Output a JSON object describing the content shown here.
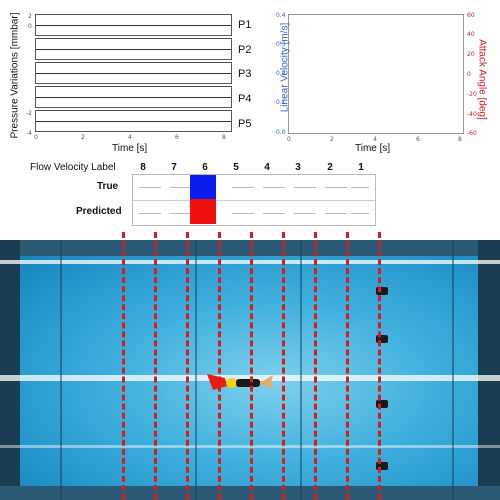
{
  "pressure_plot": {
    "ylabel": "Pressure Variations [mmbar]",
    "xlabel": "Time [s]",
    "channels": [
      "P1",
      "P2",
      "P3",
      "P4",
      "P5"
    ],
    "x_ticks": [
      "0",
      "2",
      "4",
      "6",
      "8"
    ],
    "y_ticks_tiny": [
      "2",
      "0",
      "-2",
      "-4"
    ]
  },
  "velocity_plot": {
    "ylabel_left": "Linear Velocity [m/s]",
    "ylabel_right": "Attack Angle [deg]",
    "xlabel": "Time [s]",
    "left_ticks": [
      "0.4",
      "0.3",
      "0.2",
      "0.1",
      "0.0"
    ],
    "right_ticks": [
      "60",
      "40",
      "20",
      "0",
      "-20",
      "-40",
      "-60"
    ],
    "x_ticks": [
      "0",
      "2",
      "4",
      "6",
      "8"
    ],
    "left_color": "#2f5fd0",
    "right_color": "#d01e1e"
  },
  "flow_table": {
    "header_label": "Flow Velocity Label",
    "columns": [
      "8",
      "7",
      "6",
      "5",
      "4",
      "3",
      "2",
      "1"
    ],
    "rows": [
      {
        "label": "True",
        "active_column": "6",
        "color": "#0a1cf0"
      },
      {
        "label": "Predicted",
        "active_column": "6",
        "color": "#f01010"
      }
    ]
  },
  "pool": {
    "red_line_color": "#d91c1c",
    "water_color": "#3fb0de"
  }
}
